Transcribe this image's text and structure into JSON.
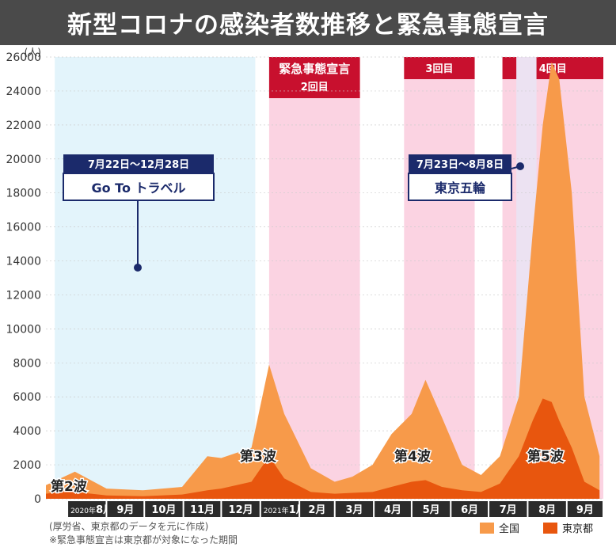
{
  "chart_data": {
    "type": "area",
    "title": "新型コロナの感染者数推移と緊急事態宣言",
    "y_unit": "(人)",
    "ylim": [
      0,
      26000
    ],
    "y_ticks": [
      0,
      2000,
      4000,
      6000,
      8000,
      10000,
      12000,
      14000,
      16000,
      18000,
      20000,
      22000,
      24000,
      26000
    ],
    "grid": true,
    "months": [
      {
        "label": "8月",
        "prefix": "2020年"
      },
      {
        "label": "9月",
        "prefix": ""
      },
      {
        "label": "10月",
        "prefix": ""
      },
      {
        "label": "11月",
        "prefix": ""
      },
      {
        "label": "12月",
        "prefix": ""
      },
      {
        "label": "1月",
        "prefix": "2021年"
      },
      {
        "label": "2月",
        "prefix": ""
      },
      {
        "label": "3月",
        "prefix": ""
      },
      {
        "label": "4月",
        "prefix": ""
      },
      {
        "label": "5月",
        "prefix": ""
      },
      {
        "label": "6月",
        "prefix": ""
      },
      {
        "label": "7月",
        "prefix": ""
      },
      {
        "label": "8月",
        "prefix": ""
      },
      {
        "label": "9月",
        "prefix": ""
      }
    ],
    "periods": [
      {
        "id": "goto",
        "start": "2020-07-22",
        "end": "2020-12-28",
        "color": "#e3f4fb"
      },
      {
        "id": "state2",
        "start": "2021-01-08",
        "end": "2021-03-21",
        "color": "#fbd3e2",
        "label_lines": [
          "緊急事態宣言",
          "2回目"
        ]
      },
      {
        "id": "state3",
        "start": "2021-04-25",
        "end": "2021-06-20",
        "color": "#fbd3e2",
        "label_lines": [
          "3回目"
        ]
      },
      {
        "id": "state4",
        "start": "2021-07-12",
        "end": "2021-09-30",
        "color": "#fbd3e2",
        "label_lines": [
          "4回目"
        ]
      },
      {
        "id": "olympics",
        "start": "2021-07-23",
        "end": "2021-08-08",
        "color": "#ece2f2"
      }
    ],
    "callouts": [
      {
        "id": "goto",
        "date_range": "7月22日～12月28日",
        "name": "Go To トラベル"
      },
      {
        "id": "olympics",
        "date_range": "7月23日～8月8日",
        "name": "東京五輪"
      }
    ],
    "waves": [
      "第2波",
      "第3波",
      "第4波",
      "第5波"
    ],
    "series": [
      {
        "name": "全国",
        "color": "#f79a4a",
        "x": [
          "2020-07-15",
          "2020-08-07",
          "2020-09-01",
          "2020-09-30",
          "2020-10-31",
          "2020-11-20",
          "2020-12-01",
          "2020-12-25",
          "2021-01-08",
          "2021-01-20",
          "2021-02-10",
          "2021-03-01",
          "2021-03-15",
          "2021-03-31",
          "2021-04-15",
          "2021-05-01",
          "2021-05-12",
          "2021-05-25",
          "2021-06-10",
          "2021-06-25",
          "2021-07-10",
          "2021-07-25",
          "2021-08-05",
          "2021-08-13",
          "2021-08-20",
          "2021-08-26",
          "2021-09-05",
          "2021-09-15",
          "2021-09-27"
        ],
        "y": [
          800,
          1600,
          600,
          500,
          700,
          2500,
          2400,
          3000,
          7900,
          5000,
          1800,
          1000,
          1300,
          2000,
          3800,
          5000,
          7000,
          4800,
          2000,
          1400,
          2500,
          6000,
          15700,
          22000,
          25700,
          24700,
          18000,
          6000,
          2500
        ]
      },
      {
        "name": "東京都",
        "color": "#e8560e",
        "x": [
          "2020-07-15",
          "2020-08-01",
          "2020-09-01",
          "2020-09-30",
          "2020-10-31",
          "2020-11-20",
          "2020-12-01",
          "2020-12-25",
          "2021-01-08",
          "2021-01-20",
          "2021-02-10",
          "2021-03-01",
          "2021-03-15",
          "2021-03-31",
          "2021-04-15",
          "2021-05-01",
          "2021-05-12",
          "2021-05-25",
          "2021-06-10",
          "2021-06-25",
          "2021-07-10",
          "2021-07-25",
          "2021-08-05",
          "2021-08-13",
          "2021-08-20",
          "2021-08-26",
          "2021-09-05",
          "2021-09-15",
          "2021-09-27"
        ],
        "y": [
          300,
          450,
          200,
          150,
          250,
          500,
          600,
          1000,
          2500,
          1200,
          400,
          300,
          350,
          400,
          700,
          1000,
          1100,
          700,
          500,
          400,
          900,
          2500,
          4600,
          5900,
          5700,
          4600,
          3000,
          1000,
          500
        ]
      }
    ]
  },
  "notes": [
    "(厚労省、東京都のデータを元に作成)",
    "※緊急事態宣言は東京都が対象になった期間"
  ]
}
